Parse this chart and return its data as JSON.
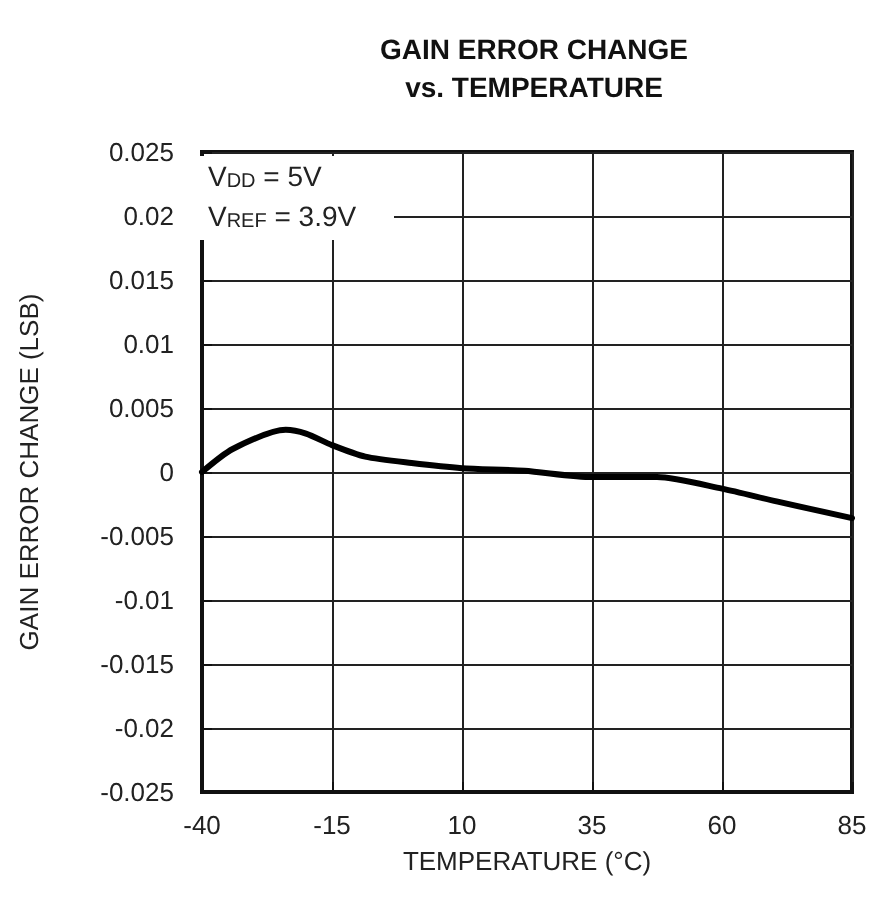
{
  "chart_data": {
    "type": "line",
    "title": "GAIN ERROR CHANGE\nvs. TEMPERATURE",
    "xlabel": "TEMPERATURE (°C)",
    "ylabel": "GAIN ERROR CHANGE (LSB)",
    "annotations": [
      "V$_{DD}$ = 5V",
      "V$_{REF}$ = 3.9V"
    ],
    "x": [
      -40,
      -34.1,
      -23.9,
      -20,
      -15,
      -8.6,
      0.3,
      10,
      22,
      35,
      47.5,
      60,
      70.5,
      85
    ],
    "series": [
      {
        "color": "#000000",
        "values": [
          0,
          0.0018,
          0.0033,
          0.003,
          0.0021,
          0.0012,
          0.0007,
          0.0003,
          0.0001,
          -0.0004,
          -0.0004,
          -0.0013,
          -0.0023,
          -0.0036
        ]
      }
    ],
    "xlim": [
      -40,
      85
    ],
    "xticks": [
      -40,
      -15,
      10,
      35,
      60,
      85
    ],
    "ylim": [
      -0.025,
      0.025
    ],
    "yticks": [
      -0.025,
      -0.02,
      -0.015,
      -0.01,
      -0.005,
      0,
      0.005,
      0.01,
      0.015,
      0.02,
      0.025
    ],
    "grid": true,
    "marker": "none",
    "line_style": "solid"
  }
}
